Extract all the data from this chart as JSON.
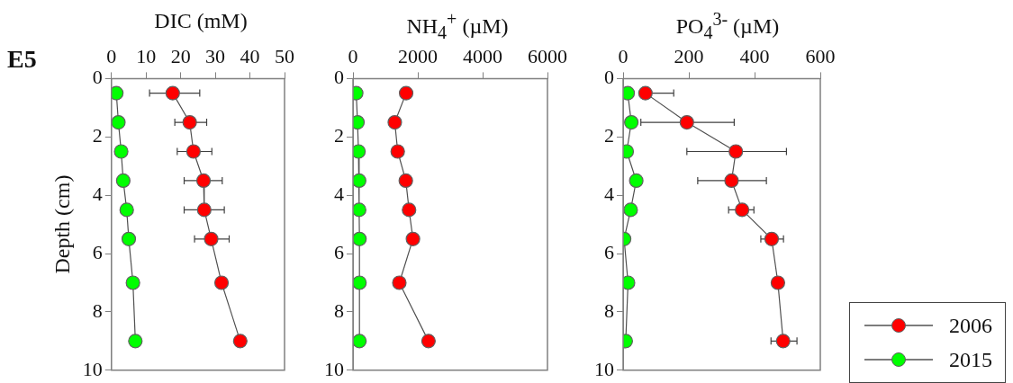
{
  "chart_data": [
    {
      "type": "line",
      "title": "DIC (mM)",
      "ylabel": "Depth (cm)",
      "annotations": [
        "E5"
      ],
      "xlim": [
        0,
        50
      ],
      "xticks": [
        0,
        10,
        20,
        30,
        40,
        50
      ],
      "ylim": [
        10,
        0
      ],
      "yticks": [
        0,
        2,
        4,
        6,
        8,
        10
      ],
      "grid": false,
      "marker": "circle",
      "line_style": "solid",
      "series": [
        {
          "color": "#ff0000",
          "x": [
            17.7,
            22.6,
            23.7,
            26.6,
            26.8,
            28.8,
            31.8,
            37.2
          ],
          "values": [
            0.5,
            1.5,
            2.5,
            3.5,
            4.5,
            5.5,
            7,
            9
          ],
          "xerrors": [
            [
              11,
              25.5
            ],
            [
              18.3,
              27.5
            ],
            [
              19,
              29
            ],
            [
              21,
              32
            ],
            [
              21,
              32.6
            ],
            [
              24,
              34
            ],
            null,
            null
          ]
        },
        {
          "color": "#00ff00",
          "x": [
            1.4,
            2,
            2.8,
            3.4,
            4.4,
            5,
            6.2,
            6.9
          ],
          "values": [
            0.5,
            1.5,
            2.5,
            3.5,
            4.5,
            5.5,
            7,
            9
          ]
        }
      ]
    },
    {
      "type": "line",
      "title": "NH$_{4}$$^{+}$ (µM)",
      "xlim": [
        0,
        6000
      ],
      "xticks": [
        0,
        2000,
        4000,
        6000
      ],
      "ylim": [
        10,
        0
      ],
      "yticks": [
        0,
        2,
        4,
        6,
        8,
        10
      ],
      "grid": false,
      "marker": "circle",
      "line_style": "solid",
      "series": [
        {
          "color": "#ff0000",
          "x": [
            1640,
            1290,
            1380,
            1630,
            1730,
            1850,
            1430,
            2330
          ],
          "values": [
            0.5,
            1.5,
            2.5,
            3.5,
            4.5,
            5.5,
            7,
            9
          ]
        },
        {
          "color": "#00ff00",
          "x": [
            100,
            140,
            170,
            190,
            190,
            200,
            200,
            200
          ],
          "values": [
            0.5,
            1.5,
            2.5,
            3.5,
            4.5,
            5.5,
            7,
            9
          ]
        }
      ]
    },
    {
      "type": "line",
      "title": "PO$_{4}$$^{3-}$ (µM)",
      "xlim": [
        0,
        600
      ],
      "xticks": [
        0,
        200,
        400,
        600
      ],
      "ylim": [
        10,
        0
      ],
      "yticks": [
        0,
        2,
        4,
        6,
        8,
        10
      ],
      "grid": false,
      "marker": "circle",
      "line_style": "solid",
      "legend": "bottom right",
      "series": [
        {
          "name": "2006",
          "color": "#ff0000",
          "x": [
            68,
            194,
            343,
            330,
            362,
            452,
            471,
            487
          ],
          "values": [
            0.5,
            1.5,
            2.5,
            3.5,
            4.5,
            5.5,
            7,
            9
          ],
          "xerrors": [
            [
              68,
              154
            ],
            [
              54,
              338
            ],
            [
              194,
              497
            ],
            [
              227,
              436
            ],
            [
              321,
              398
            ],
            [
              419,
              488
            ],
            null,
            [
              450,
              529
            ]
          ]
        },
        {
          "name": "2015",
          "color": "#00ff00",
          "x": [
            14,
            25,
            11,
            40,
            23,
            3,
            15,
            8
          ],
          "values": [
            0.5,
            1.5,
            2.5,
            3.5,
            4.5,
            5.5,
            7,
            9
          ]
        }
      ]
    }
  ]
}
